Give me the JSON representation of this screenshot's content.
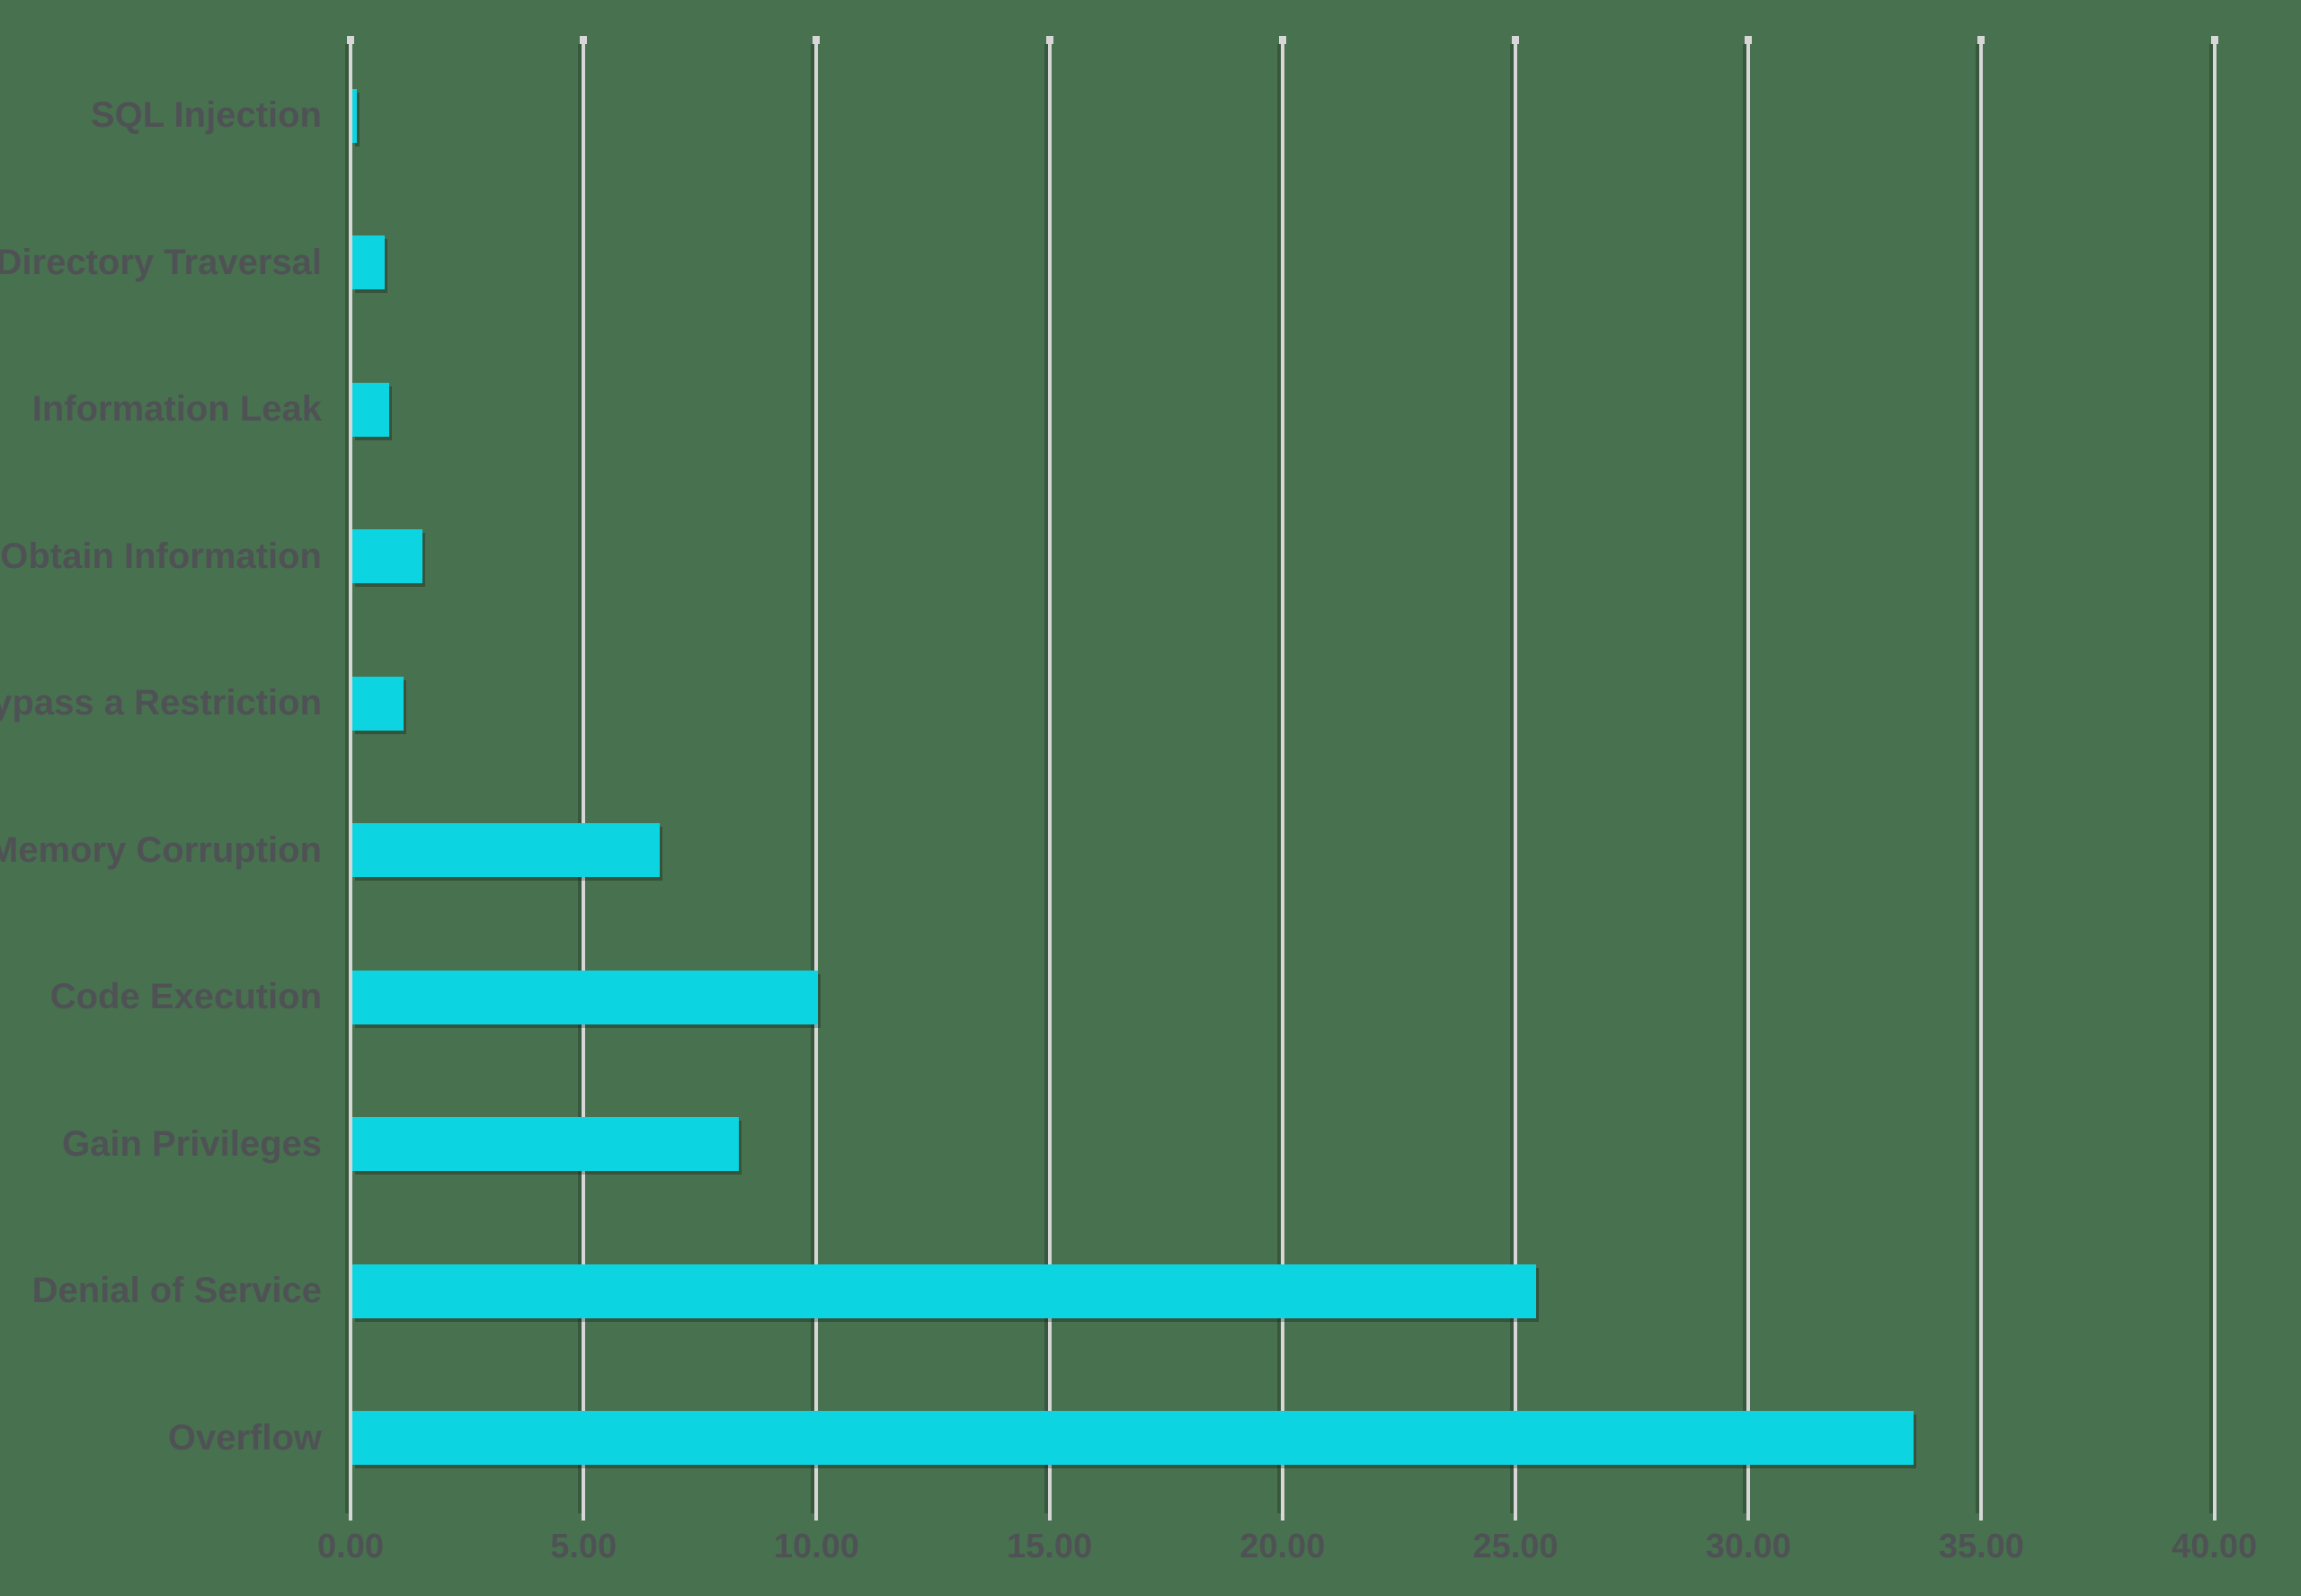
{
  "colors": {
    "background": "#487150",
    "bar": "#0cd4e0",
    "gridline": "#d7d7d7",
    "text": "#4f5254"
  },
  "chart_data": {
    "type": "bar",
    "orientation": "horizontal",
    "title": "",
    "xlabel": "",
    "ylabel": "",
    "legend": "none",
    "grid": "vertical",
    "categories": [
      "SQL Injection",
      "Directory Traversal",
      "Information Leak",
      "Obtain Information",
      "Bypass a Restriction",
      "Memory Corruption",
      "Code Execution",
      "Gain Privileges",
      "Denial of Service",
      "Overflow"
    ],
    "values": [
      0.1,
      0.7,
      0.8,
      1.5,
      1.1,
      6.6,
      10.0,
      8.3,
      25.4,
      33.5
    ],
    "x_ticks": [
      "0.00",
      "5.00",
      "10.00",
      "15.00",
      "20.00",
      "25.00",
      "30.00",
      "35.00",
      "40.00"
    ],
    "x_tick_values": [
      0,
      5,
      10,
      15,
      20,
      25,
      30,
      35,
      40
    ],
    "xlim": [
      0,
      41.86
    ]
  }
}
